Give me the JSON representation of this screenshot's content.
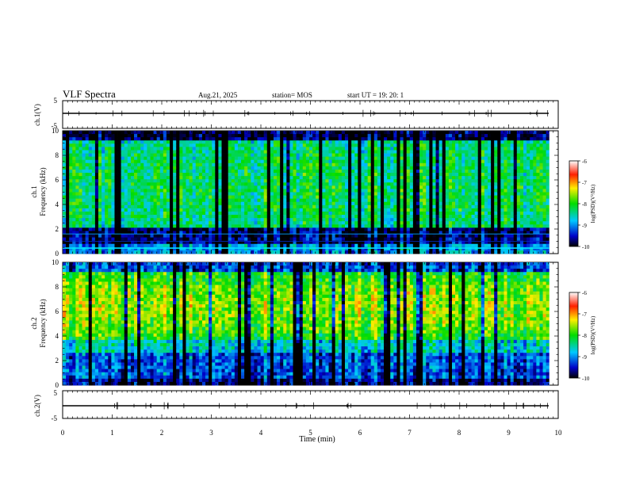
{
  "header": {
    "title": "VLF Spectra",
    "date": "Aug.21, 2025",
    "station": "station= MOS",
    "start": "start  UT  =   19: 20: 1"
  },
  "chart_data": [
    {
      "type": "line",
      "panel": "ch1-waveform",
      "ylabel": "ch.1(V)",
      "ylim": [
        -5,
        5
      ],
      "yticks": [
        "5",
        "-5"
      ],
      "baseline_value": 0
    },
    {
      "type": "heatmap",
      "panel": "ch1-spectrogram",
      "ylabel": "ch.1\nFrequency (kHz)",
      "ylim": [
        0,
        10
      ],
      "yticks": [
        "0",
        "2",
        "4",
        "6",
        "8",
        "10"
      ],
      "colorbar": {
        "label": "log(PSD)(V²/Hz)",
        "range": [
          -10,
          -6
        ],
        "ticks": [
          "-6",
          "-7",
          "-8",
          "-9",
          "-10"
        ]
      }
    },
    {
      "type": "heatmap",
      "panel": "ch2-spectrogram",
      "ylabel": "ch.2\nFrequency (kHz)",
      "ylim": [
        0,
        10
      ],
      "yticks": [
        "0",
        "2",
        "4",
        "6",
        "8",
        "10"
      ],
      "colorbar": {
        "label": "log(PSD)(V²/Hz)",
        "range": [
          -10,
          -6
        ],
        "ticks": [
          "-6",
          "-7",
          "-8",
          "-9",
          "-10"
        ]
      }
    },
    {
      "type": "line",
      "panel": "ch2-waveform",
      "ylabel": "ch.2(V)",
      "ylim": [
        -5,
        5
      ],
      "yticks": [
        "5",
        "-5"
      ],
      "baseline_value": 0
    }
  ],
  "xaxis": {
    "label": "Time  (min)",
    "xlim": [
      0,
      10
    ],
    "ticks": [
      "0",
      "1",
      "2",
      "3",
      "4",
      "5",
      "6",
      "7",
      "8",
      "9",
      "10"
    ]
  }
}
